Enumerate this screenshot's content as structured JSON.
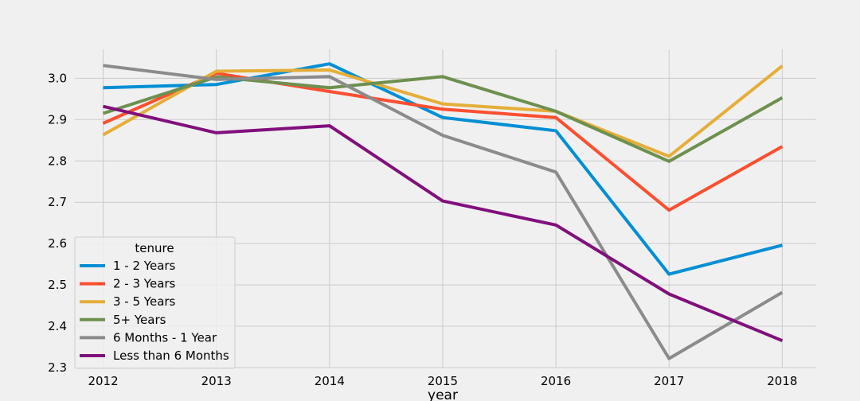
{
  "chart_data": {
    "type": "line",
    "title": "",
    "xlabel": "year",
    "ylabel": "",
    "x": [
      2012,
      2013,
      2014,
      2015,
      2016,
      2017,
      2018
    ],
    "xlim": [
      2011.75,
      2018.3
    ],
    "ylim": [
      2.3,
      3.07
    ],
    "yticks": [
      2.3,
      2.4,
      2.5,
      2.6,
      2.7,
      2.8,
      2.9,
      3.0
    ],
    "ytick_labels": [
      "2.3",
      "2.4",
      "2.5",
      "2.6",
      "2.7",
      "2.8",
      "2.9",
      "3.0"
    ],
    "xtick_labels": [
      "2012",
      "2013",
      "2014",
      "2015",
      "2016",
      "2017",
      "2018"
    ],
    "grid": true,
    "legend": {
      "title": "tenure",
      "placement": "lower-left"
    },
    "series": [
      {
        "name": "1 - 2 Years",
        "color": "#008fd5",
        "values": [
          2.977,
          2.985,
          3.035,
          2.905,
          2.873,
          2.526,
          2.596
        ]
      },
      {
        "name": "2 - 3 Years",
        "color": "#fc4f30",
        "values": [
          2.891,
          3.012,
          2.968,
          2.925,
          2.905,
          2.681,
          2.835
        ]
      },
      {
        "name": "3 - 5 Years",
        "color": "#e5ae38",
        "values": [
          2.863,
          3.017,
          3.02,
          2.938,
          2.92,
          2.811,
          3.03
        ]
      },
      {
        "name": "5+ Years",
        "color": "#6d904f",
        "values": [
          2.915,
          3.003,
          2.977,
          3.004,
          2.92,
          2.799,
          2.953
        ]
      },
      {
        "name": "6 Months - 1 Year",
        "color": "#8b8b8b",
        "values": [
          3.031,
          2.997,
          3.004,
          2.862,
          2.773,
          2.322,
          2.482
        ]
      },
      {
        "name": "Less than 6 Months",
        "color": "#810f7c",
        "values": [
          2.932,
          2.868,
          2.885,
          2.703,
          2.645,
          2.478,
          2.365
        ]
      }
    ]
  }
}
